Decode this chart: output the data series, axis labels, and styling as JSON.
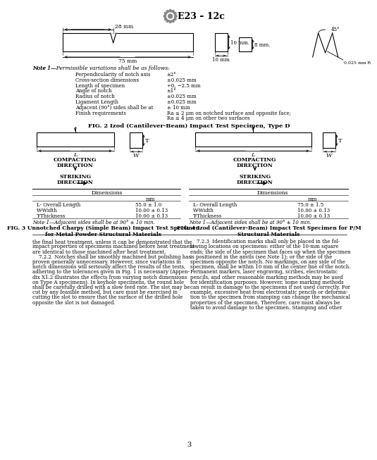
{
  "title": "E23 – 12c",
  "bg_color": "#ffffff",
  "fig2_caption": "FIG. 2 Izod (Cantilever-Beam) Impact Test Specimen, Type D",
  "fig3_caption": "FIG. 3 Unnotched Charpy (Simple Beam) Impact Test Specimen\nfor Metal Powder Structural Materials",
  "fig4_caption": "FIG. 4 Izod (Cantilever-Beam) Impact Test Specimen for P/M\nStructural Materials",
  "variations": [
    [
      "Perpendicularity of notch axis",
      "±2°"
    ],
    [
      "Cross-section dimensions",
      "±0.025 mm"
    ],
    [
      "Length of specimen",
      "+0, −2.5 mm"
    ],
    [
      "Angle of notch",
      "±1°"
    ],
    [
      "Radius of notch",
      "±0.025 mm"
    ],
    [
      "Ligament Length",
      "±0.025 mm"
    ],
    [
      "Adjacent (90°) sides shall be at",
      "± 10 min"
    ],
    [
      "Finish requirements",
      "Ra ≤ 2 μm on notched surface and opposite face;"
    ],
    [
      "",
      "Ra ≤ 4 μm on other two surfaces"
    ]
  ],
  "fig3_dims": [
    [
      "L- Overall Length",
      "55.0 ± 1.0"
    ],
    [
      "W-Width",
      "10.00 ± 0.13"
    ],
    [
      "T-Thickness",
      "10.00 ± 0.13"
    ]
  ],
  "fig4_dims": [
    [
      "L- Overall Length",
      "75.0 ± 1.5"
    ],
    [
      "W-Width",
      "10.00 ± 0.13"
    ],
    [
      "T-Thickness",
      "10.00 ± 0.13"
    ]
  ],
  "body_left_lines": [
    "the final heat treatment, unless it can be demonstrated that the",
    "impact properties of specimens machined before heat treatment",
    "are identical to those machined after heat treatment.",
    "    7.2.2  Notches shall be smoothly machined but polishing has",
    "proven generally unnecessary. However, since variations in",
    "notch dimensions will seriously affect the results of the tests,",
    "adhering to the tolerances given in Fig. 1 is necessary (Appen-",
    "dix X1.2 illustrates the effects from varying notch dimensions",
    "on Type A specimens). In keyhole specimens, the round hole",
    "shall be carefully drilled with a slow feed rate. The slot may be",
    "cut by any feasible method, but care must be exercised in",
    "cutting the slot to ensure that the surface of the drilled hole",
    "opposite the slot is not damaged."
  ],
  "body_right_lines": [
    "    7.2.3  Identification marks shall only be placed in the fol-",
    "lowing locations on specimens: either of the 10-mm square",
    "ends; the side of the specimen that faces up when the specimen",
    "is positioned in the anvils (see Note 1); or the side of the",
    "specimen opposite the notch. No markings, on any side of the",
    "specimen, shall be within 10 mm of the center line of the notch.",
    "Permanent markers, laser engraving, scribes, electrostatic",
    "pencils, and other reasonable marking methods may be used",
    "for identification purposes. However, some marking methods",
    "can result in damage to the specimens if not used correctly. For",
    "example, excessive heat from electrostatic pencils or deforma-",
    "tion to the specimen from stamping can change the mechanical",
    "properties of the specimen. Therefore, care must always be",
    "taken to avoid damage to the specimen. Stamping and other"
  ],
  "page_number": "3"
}
